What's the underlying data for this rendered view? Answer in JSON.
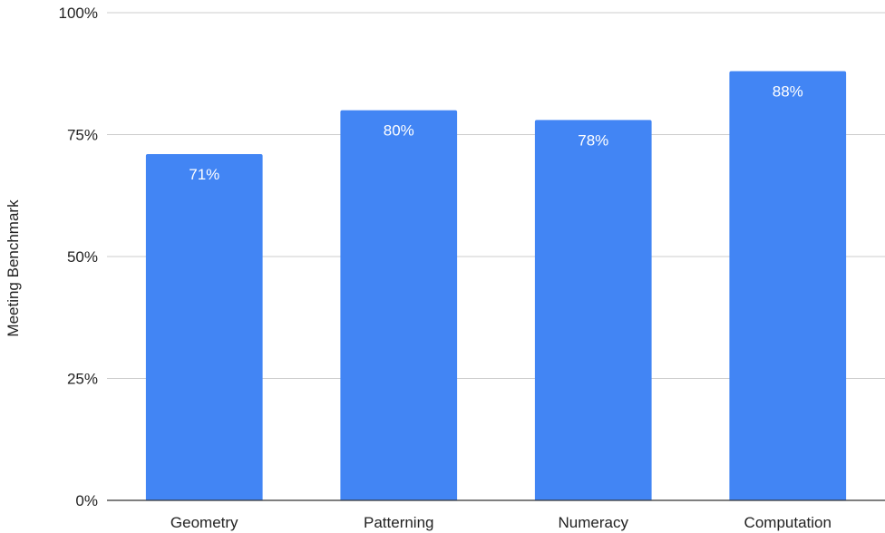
{
  "chart_data": {
    "type": "bar",
    "title": "",
    "xlabel": "",
    "ylabel": "Meeting Benchmark",
    "categories": [
      "Geometry",
      "Patterning",
      "Numeracy",
      "Computation"
    ],
    "values": [
      71,
      80,
      78,
      88
    ],
    "data_labels": [
      "71%",
      "80%",
      "78%",
      "88%"
    ],
    "ylim": [
      0,
      100
    ],
    "yticks": [
      0,
      25,
      50,
      75,
      100
    ],
    "ytick_labels": [
      "0%",
      "25%",
      "50%",
      "75%",
      "100%"
    ],
    "grid": true,
    "legend": "none",
    "bar_color": "#4285f4"
  }
}
